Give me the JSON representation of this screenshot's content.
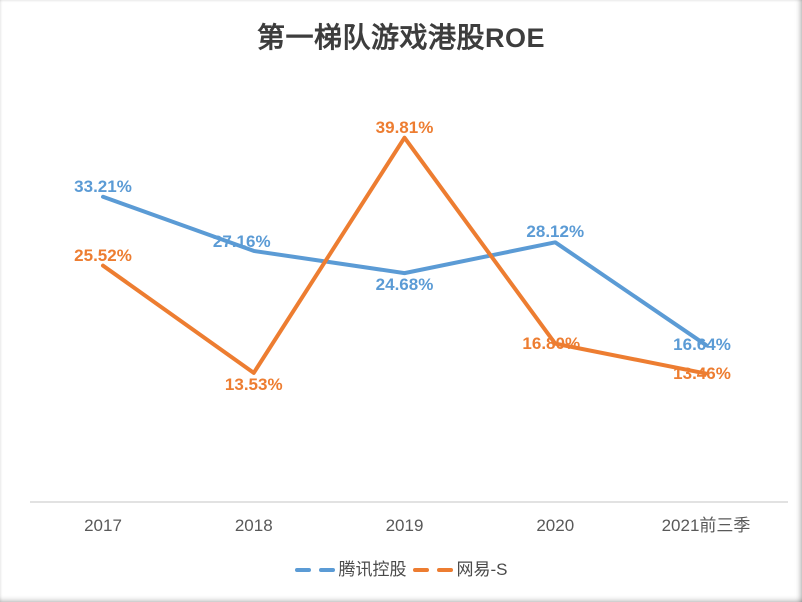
{
  "title": {
    "cn": "第一梯队游戏港股",
    "en": "ROE"
  },
  "chart_data": {
    "type": "line",
    "title": "第一梯队游戏港股ROE",
    "categories": [
      "2017",
      "2018",
      "2019",
      "2020",
      "2021前三季"
    ],
    "series": [
      {
        "name": "腾讯控股",
        "color": "#5B9BD5",
        "values": [
          33.21,
          27.16,
          24.68,
          28.12,
          16.64
        ],
        "labels": [
          "33.21%",
          "27.16%",
          "24.68%",
          "28.12%",
          "16.64%"
        ],
        "label_positions": [
          "above",
          "above-left",
          "below",
          "above",
          "center"
        ]
      },
      {
        "name": "网易-S",
        "color": "#ED7D31",
        "values": [
          25.52,
          13.53,
          39.81,
          16.8,
          13.46
        ],
        "labels": [
          "25.52%",
          "13.53%",
          "39.81%",
          "16.80%",
          "13.46%"
        ],
        "label_positions": [
          "above",
          "below",
          "above",
          "center",
          "center"
        ]
      }
    ],
    "ylim": [
      0,
      45
    ],
    "grid": false,
    "legend_position": "bottom",
    "axis_color": "#d9d9d9",
    "tick_color": "#595959"
  }
}
